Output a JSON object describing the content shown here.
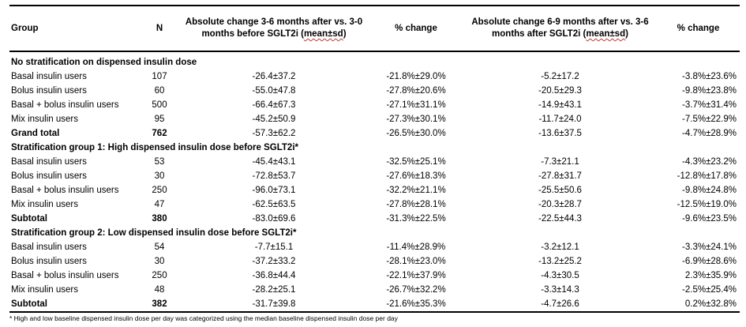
{
  "table": {
    "headers": {
      "group": "Group",
      "n": "N",
      "abs1": "Absolute change 3-6 months after vs. 3-0 months before SGLT2i (mean±sd)",
      "pct1": "% change",
      "abs2": "Absolute change 6-9 months after vs. 3-6 months after SGLT2i (mean±sd)",
      "pct2": "% change"
    },
    "sections": [
      {
        "title": "No stratification on dispensed insulin dose",
        "rows": [
          {
            "group": "Basal insulin users",
            "n": "107",
            "abs1": "-26.4±37.2",
            "pct1": "-21.8%±29.0%",
            "abs2": "-5.2±17.2",
            "pct2": "-3.8%±23.6%"
          },
          {
            "group": "Bolus insulin users",
            "n": "60",
            "abs1": "-55.0±47.8",
            "pct1": "-27.8%±20.6%",
            "abs2": "-20.5±29.3",
            "pct2": "-9.8%±23.8%"
          },
          {
            "group": "Basal + bolus insulin users",
            "n": "500",
            "abs1": "-66.4±67.3",
            "pct1": "-27.1%±31.1%",
            "abs2": "-14.9±43.1",
            "pct2": "-3.7%±31.4%"
          },
          {
            "group": "Mix insulin users",
            "n": "95",
            "abs1": "-45.2±50.9",
            "pct1": "-27.3%±30.1%",
            "abs2": "-11.7±24.0",
            "pct2": "-7.5%±22.9%"
          }
        ],
        "total": {
          "group": "Grand total",
          "n": "762",
          "abs1": "-57.3±62.2",
          "pct1": "-26.5%±30.0%",
          "abs2": "-13.6±37.5",
          "pct2": "-4.7%±28.9%"
        }
      },
      {
        "title": "Stratification group 1: High dispensed insulin dose before SGLT2i*",
        "rows": [
          {
            "group": "Basal insulin users",
            "n": "53",
            "abs1": "-45.4±43.1",
            "pct1": "-32.5%±25.1%",
            "abs2": "-7.3±21.1",
            "pct2": "-4.3%±23.2%"
          },
          {
            "group": "Bolus insulin users",
            "n": "30",
            "abs1": "-72.8±53.7",
            "pct1": "-27.6%±18.3%",
            "abs2": "-27.8±31.7",
            "pct2": "-12.8%±17.8%"
          },
          {
            "group": "Basal + bolus insulin users",
            "n": "250",
            "abs1": "-96.0±73.1",
            "pct1": "-32.2%±21.1%",
            "abs2": "-25.5±50.6",
            "pct2": "-9.8%±24.8%"
          },
          {
            "group": "Mix insulin users",
            "n": "47",
            "abs1": "-62.5±63.5",
            "pct1": "-27.8%±28.1%",
            "abs2": "-20.3±28.7",
            "pct2": "-12.5%±19.0%"
          }
        ],
        "total": {
          "group": "Subtotal",
          "n": "380",
          "abs1": "-83.0±69.6",
          "pct1": "-31.3%±22.5%",
          "abs2": "-22.5±44.3",
          "pct2": "-9.6%±23.5%"
        }
      },
      {
        "title": "Stratification group 2: Low dispensed insulin dose before SGLT2i*",
        "rows": [
          {
            "group": "Basal insulin users",
            "n": "54",
            "abs1": "-7.7±15.1",
            "pct1": "-11.4%±28.9%",
            "abs2": "-3.2±12.1",
            "pct2": "-3.3%±24.1%"
          },
          {
            "group": "Bolus insulin users",
            "n": "30",
            "abs1": "-37.2±33.2",
            "pct1": "-28.1%±23.0%",
            "abs2": "-13.2±25.2",
            "pct2": "-6.9%±28.6%"
          },
          {
            "group": "Basal + bolus insulin users",
            "n": "250",
            "abs1": "-36.8±44.4",
            "pct1": "-22.1%±37.9%",
            "abs2": "-4.3±30.5",
            "pct2": "2.3%±35.9%"
          },
          {
            "group": "Mix insulin users",
            "n": "48",
            "abs1": "-28.2±25.1",
            "pct1": "-26.7%±32.2%",
            "abs2": "-3.3±14.3",
            "pct2": "-2.5%±25.4%"
          }
        ],
        "total": {
          "group": "Subtotal",
          "n": "382",
          "abs1": "-31.7±39.8",
          "pct1": "-21.6%±35.3%",
          "abs2": "-4.7±26.6",
          "pct2": "0.2%±32.8%"
        }
      }
    ]
  },
  "footnote": "* High and low baseline dispensed insulin dose per day was categorized using the median baseline dispensed insulin dose per day"
}
